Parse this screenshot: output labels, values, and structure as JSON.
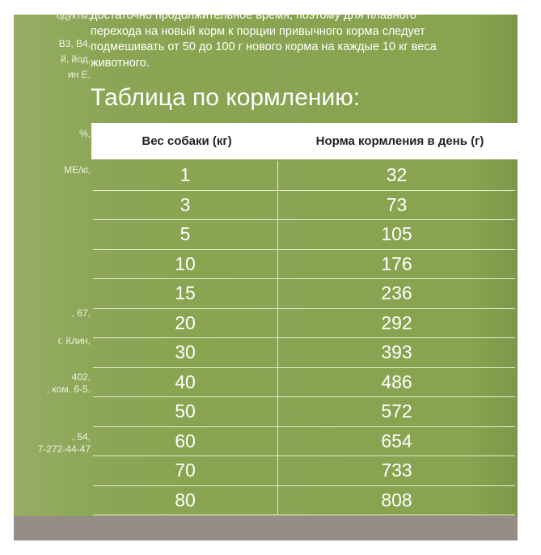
{
  "side_fragments": [
    "одукты,",
    "В3, В4,",
    "й, йод,",
    "ин Е,",
    "%,",
    "МЕ/кг,",
    ", 67,",
    "г. Клин,",
    "402,",
    ", ком. 6-5.",
    ", 54,",
    "7-272-44-47"
  ],
  "paragraph": [
    "достаточно продолжительное время, поэтому для плавного",
    "перехода на новый корм к порции привычного корма следует",
    "подмешивать от 50 до 100 г нового корма на каждые 10 кг веса",
    "животного."
  ],
  "title": "Таблица по кормлению:",
  "table": {
    "headers": [
      "Вес собаки (кг)",
      "Норма кормления в день (г)"
    ],
    "rows": [
      [
        "1",
        "32"
      ],
      [
        "3",
        "73"
      ],
      [
        "5",
        "105"
      ],
      [
        "10",
        "176"
      ],
      [
        "15",
        "236"
      ],
      [
        "20",
        "292"
      ],
      [
        "30",
        "393"
      ],
      [
        "40",
        "486"
      ],
      [
        "50",
        "572"
      ],
      [
        "60",
        "654"
      ],
      [
        "70",
        "733"
      ],
      [
        "80",
        "808"
      ]
    ]
  },
  "colors": {
    "background": "#8aa553",
    "band": "#958d88"
  }
}
